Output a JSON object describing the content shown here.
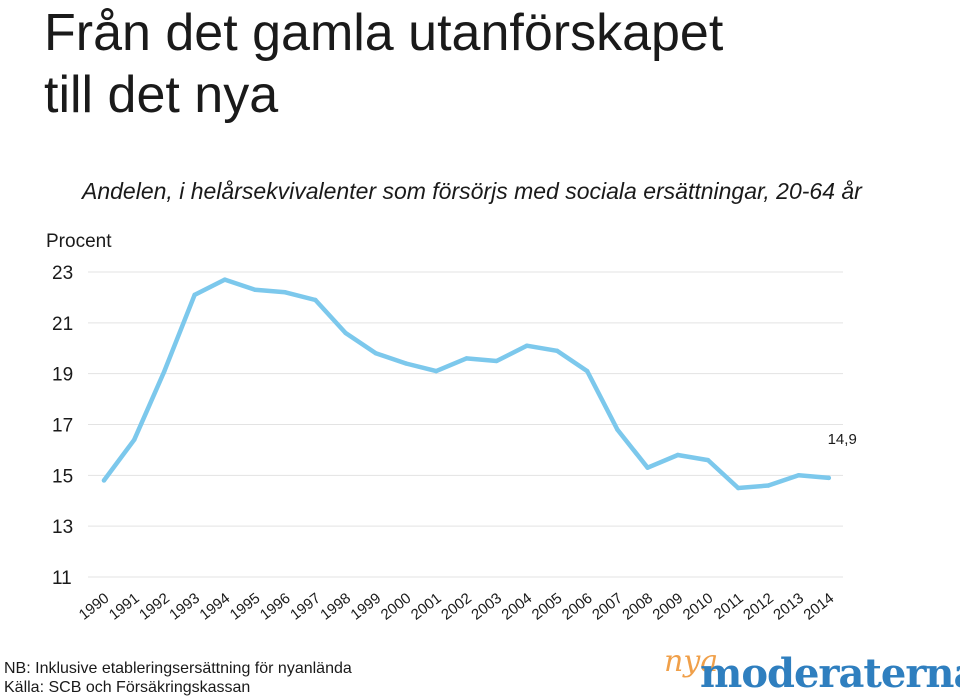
{
  "header": {
    "title_line1": "Från det gamla utanförskapet",
    "title_line2": "till det nya"
  },
  "chart_data": {
    "type": "line",
    "title": "Från det gamla utanförskapet till det nya",
    "subtitle": "Andelen, i helårsekvivalenter som försörjs med sociala ersättningar, 20-64 år",
    "ylabel": "Procent",
    "xlabel": "",
    "ylim": [
      11,
      23
    ],
    "yticks": [
      "23",
      "21",
      "19",
      "17",
      "15",
      "13",
      "11"
    ],
    "yticks_values": [
      23,
      21,
      19,
      17,
      15,
      13,
      11
    ],
    "grid": true,
    "categories": [
      "1990",
      "1991",
      "1992",
      "1993",
      "1994",
      "1995",
      "1996",
      "1997",
      "1998",
      "1999",
      "2000",
      "2001",
      "2002",
      "2003",
      "2004",
      "2005",
      "2006",
      "2007",
      "2008",
      "2009",
      "2010",
      "2011",
      "2012",
      "2013",
      "2014"
    ],
    "series": [
      {
        "name": "",
        "color": "#7cc8ec",
        "values": [
          14.8,
          16.4,
          19.1,
          22.1,
          22.7,
          22.3,
          22.2,
          21.9,
          20.6,
          19.8,
          19.4,
          19.1,
          19.6,
          19.5,
          20.1,
          19.9,
          19.1,
          16.8,
          15.3,
          15.8,
          15.6,
          14.5,
          14.6,
          15.0,
          14.9
        ]
      }
    ],
    "annotations": [
      {
        "label": "14,9",
        "category": "2014"
      }
    ]
  },
  "footer": {
    "note": "NB: Inklusive etableringsersättning för nyanlända",
    "source": "Källa: SCB och Försäkringskassan"
  },
  "logo": {
    "prefix": "nya",
    "name": "moderaterna",
    "prefix_color": "#f0a04a",
    "name_color": "#2f7fbf"
  }
}
